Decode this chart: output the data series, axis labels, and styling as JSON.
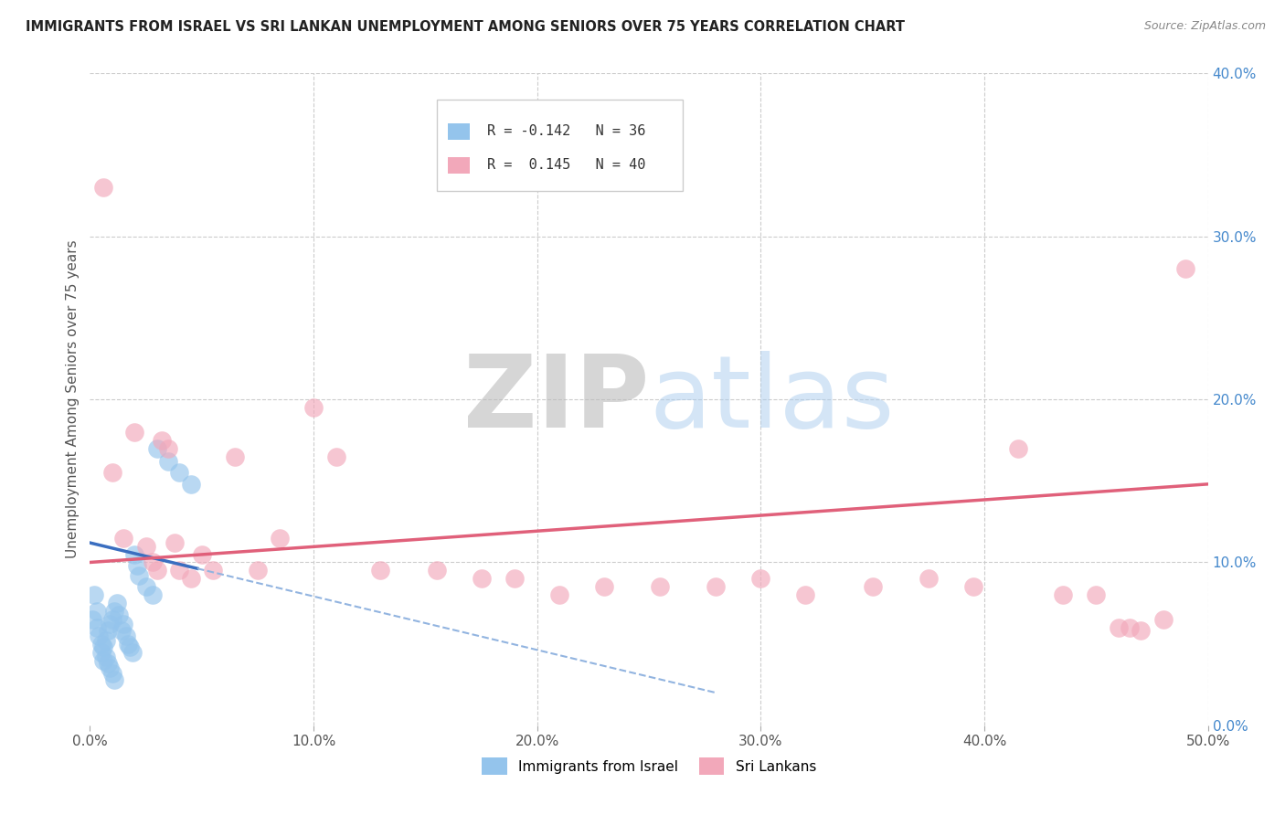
{
  "title": "IMMIGRANTS FROM ISRAEL VS SRI LANKAN UNEMPLOYMENT AMONG SENIORS OVER 75 YEARS CORRELATION CHART",
  "source": "Source: ZipAtlas.com",
  "ylabel": "Unemployment Among Seniors over 75 years",
  "xlim": [
    0.0,
    0.5
  ],
  "ylim": [
    0.0,
    0.4
  ],
  "xtick_vals": [
    0.0,
    0.1,
    0.2,
    0.3,
    0.4,
    0.5
  ],
  "ytick_right_vals": [
    0.0,
    0.1,
    0.2,
    0.3,
    0.4
  ],
  "color_israel": "#94C4EC",
  "color_srilankan": "#F2A8BA",
  "trendline_israel_solid_color": "#3A6EC0",
  "trendline_israel_dash_color": "#92B4E0",
  "trendline_srilankan_color": "#E0607A",
  "grid_color": "#CCCCCC",
  "background_color": "#FFFFFF",
  "israel_x": [
    0.001,
    0.002,
    0.003,
    0.003,
    0.004,
    0.005,
    0.005,
    0.006,
    0.006,
    0.007,
    0.007,
    0.008,
    0.008,
    0.009,
    0.009,
    0.01,
    0.01,
    0.011,
    0.011,
    0.012,
    0.013,
    0.014,
    0.015,
    0.016,
    0.017,
    0.018,
    0.019,
    0.02,
    0.021,
    0.022,
    0.025,
    0.028,
    0.03,
    0.035,
    0.04,
    0.045
  ],
  "israel_y": [
    0.065,
    0.08,
    0.07,
    0.06,
    0.055,
    0.05,
    0.045,
    0.048,
    0.04,
    0.052,
    0.042,
    0.058,
    0.038,
    0.062,
    0.035,
    0.065,
    0.032,
    0.07,
    0.028,
    0.075,
    0.068,
    0.058,
    0.062,
    0.055,
    0.05,
    0.048,
    0.045,
    0.105,
    0.098,
    0.092,
    0.085,
    0.08,
    0.17,
    0.162,
    0.155,
    0.148
  ],
  "srilankan_x": [
    0.006,
    0.01,
    0.015,
    0.02,
    0.025,
    0.028,
    0.03,
    0.032,
    0.035,
    0.038,
    0.04,
    0.045,
    0.05,
    0.055,
    0.065,
    0.075,
    0.085,
    0.1,
    0.11,
    0.13,
    0.155,
    0.175,
    0.19,
    0.21,
    0.23,
    0.255,
    0.28,
    0.3,
    0.32,
    0.35,
    0.375,
    0.395,
    0.415,
    0.435,
    0.45,
    0.46,
    0.465,
    0.47,
    0.48,
    0.49
  ],
  "srilankan_y": [
    0.33,
    0.155,
    0.115,
    0.18,
    0.11,
    0.1,
    0.095,
    0.175,
    0.17,
    0.112,
    0.095,
    0.09,
    0.105,
    0.095,
    0.165,
    0.095,
    0.115,
    0.195,
    0.165,
    0.095,
    0.095,
    0.09,
    0.09,
    0.08,
    0.085,
    0.085,
    0.085,
    0.09,
    0.08,
    0.085,
    0.09,
    0.085,
    0.17,
    0.08,
    0.08,
    0.06,
    0.06,
    0.058,
    0.065,
    0.28
  ],
  "israel_trendline_x0": 0.0,
  "israel_trendline_x_split": 0.048,
  "israel_trendline_x_end": 0.28,
  "srilankan_trendline_x0": 0.0,
  "srilankan_trendline_x_end": 0.5,
  "israel_trend_y_at_0": 0.112,
  "israel_trend_y_at_end": 0.02,
  "srilankan_trend_y_at_0": 0.1,
  "srilankan_trend_y_at_end": 0.148
}
